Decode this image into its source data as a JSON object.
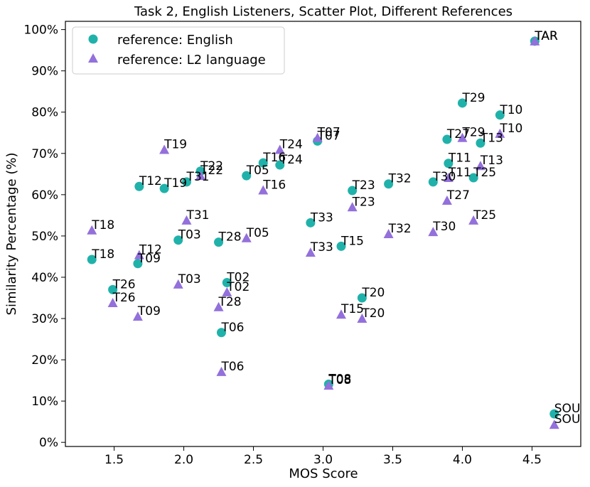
{
  "chart_data": {
    "type": "scatter",
    "title": "Task 2, English Listeners, Scatter Plot, Different References",
    "xlabel": "MOS Score",
    "ylabel": "Similarity Percentage (%)",
    "xlim": [
      1.15,
      4.85
    ],
    "ylim": [
      -1,
      102
    ],
    "xticks": [
      1.5,
      2.0,
      2.5,
      3.0,
      3.5,
      4.0,
      4.5
    ],
    "xtick_labels": [
      "1.5",
      "2.0",
      "2.5",
      "3.0",
      "3.5",
      "4.0",
      "4.5"
    ],
    "yticks": [
      0,
      10,
      20,
      30,
      40,
      50,
      60,
      70,
      80,
      90,
      100
    ],
    "ytick_labels": [
      "0%",
      "10%",
      "20%",
      "30%",
      "40%",
      "50%",
      "60%",
      "70%",
      "80%",
      "90%",
      "100%"
    ],
    "legend_position": "top-left",
    "series": [
      {
        "name": "reference: English",
        "marker": "circle",
        "color": "#20b2aa",
        "points": [
          {
            "label": "TAR",
            "x": 4.52,
            "y": 97.2
          },
          {
            "label": "T29",
            "x": 4.0,
            "y": 82.2
          },
          {
            "label": "T10",
            "x": 4.27,
            "y": 79.3
          },
          {
            "label": "T27",
            "x": 3.89,
            "y": 73.4
          },
          {
            "label": "T13",
            "x": 4.13,
            "y": 72.5
          },
          {
            "label": "T07",
            "x": 2.96,
            "y": 73.0
          },
          {
            "label": "T16",
            "x": 2.57,
            "y": 67.7
          },
          {
            "label": "T24",
            "x": 2.69,
            "y": 67.2
          },
          {
            "label": "T11",
            "x": 3.9,
            "y": 67.6
          },
          {
            "label": "T22",
            "x": 2.12,
            "y": 65.7
          },
          {
            "label": "T31",
            "x": 2.02,
            "y": 63.1
          },
          {
            "label": "T05",
            "x": 2.45,
            "y": 64.6
          },
          {
            "label": "T25",
            "x": 4.08,
            "y": 64.1
          },
          {
            "label": "T30",
            "x": 3.79,
            "y": 63.1
          },
          {
            "label": "T32",
            "x": 3.47,
            "y": 62.6
          },
          {
            "label": "T12",
            "x": 1.68,
            "y": 62.0
          },
          {
            "label": "T19",
            "x": 1.86,
            "y": 61.5
          },
          {
            "label": "T23",
            "x": 3.21,
            "y": 61.0
          },
          {
            "label": "T33",
            "x": 2.91,
            "y": 53.2
          },
          {
            "label": "T03",
            "x": 1.96,
            "y": 49.0
          },
          {
            "label": "T28",
            "x": 2.25,
            "y": 48.5
          },
          {
            "label": "T15",
            "x": 3.13,
            "y": 47.5
          },
          {
            "label": "T18",
            "x": 1.34,
            "y": 44.3
          },
          {
            "label": "T09",
            "x": 1.67,
            "y": 43.3
          },
          {
            "label": "T02",
            "x": 2.31,
            "y": 38.7
          },
          {
            "label": "T26",
            "x": 1.49,
            "y": 37.0
          },
          {
            "label": "T20",
            "x": 3.28,
            "y": 35.0
          },
          {
            "label": "T06",
            "x": 2.27,
            "y": 26.6
          },
          {
            "label": "T08",
            "x": 3.04,
            "y": 14.1
          },
          {
            "label": "SOU",
            "x": 4.66,
            "y": 6.9
          }
        ]
      },
      {
        "name": "reference: L2 language",
        "marker": "triangle",
        "color": "#9370db",
        "points": [
          {
            "label": "TAR",
            "x": 4.52,
            "y": 97.2
          },
          {
            "label": "T10",
            "x": 4.27,
            "y": 74.8
          },
          {
            "label": "T29",
            "x": 4.0,
            "y": 73.8
          },
          {
            "label": "T07",
            "x": 2.96,
            "y": 73.8
          },
          {
            "label": "T19",
            "x": 1.86,
            "y": 70.9
          },
          {
            "label": "T24",
            "x": 2.69,
            "y": 70.9
          },
          {
            "label": "T13",
            "x": 4.13,
            "y": 67.0
          },
          {
            "label": "T22",
            "x": 2.12,
            "y": 64.6
          },
          {
            "label": "T11",
            "x": 3.9,
            "y": 64.1
          },
          {
            "label": "T16",
            "x": 2.57,
            "y": 61.1
          },
          {
            "label": "T27",
            "x": 3.89,
            "y": 58.6
          },
          {
            "label": "T23",
            "x": 3.21,
            "y": 57.0
          },
          {
            "label": "T31",
            "x": 2.02,
            "y": 53.8
          },
          {
            "label": "T25",
            "x": 4.08,
            "y": 53.8
          },
          {
            "label": "T18",
            "x": 1.34,
            "y": 51.4
          },
          {
            "label": "T30",
            "x": 3.79,
            "y": 51.0
          },
          {
            "label": "T32",
            "x": 3.47,
            "y": 50.5
          },
          {
            "label": "T05",
            "x": 2.45,
            "y": 49.5
          },
          {
            "label": "T33",
            "x": 2.91,
            "y": 46.0
          },
          {
            "label": "T12",
            "x": 1.68,
            "y": 45.4
          },
          {
            "label": "T03",
            "x": 1.96,
            "y": 38.3
          },
          {
            "label": "T02",
            "x": 2.31,
            "y": 36.4
          },
          {
            "label": "T26",
            "x": 1.49,
            "y": 33.8
          },
          {
            "label": "T28",
            "x": 2.25,
            "y": 32.8
          },
          {
            "label": "T15",
            "x": 3.13,
            "y": 31.0
          },
          {
            "label": "T09",
            "x": 1.67,
            "y": 30.5
          },
          {
            "label": "T20",
            "x": 3.28,
            "y": 30.0
          },
          {
            "label": "T06",
            "x": 2.27,
            "y": 17.1
          },
          {
            "label": "T08",
            "x": 3.04,
            "y": 13.8
          },
          {
            "label": "SOU",
            "x": 4.66,
            "y": 4.3
          }
        ]
      }
    ]
  }
}
